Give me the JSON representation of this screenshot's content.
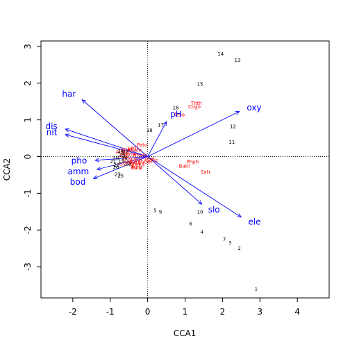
{
  "chart_data": {
    "type": "scatter",
    "title": "",
    "xlabel": "CCA1",
    "ylabel": "CCA2",
    "xlim": [
      -2.85,
      4.85
    ],
    "ylim": [
      -3.85,
      3.15
    ],
    "xticks": [
      -2,
      -1,
      0,
      1,
      2,
      3,
      4
    ],
    "yticks": [
      -3,
      -2,
      -1,
      0,
      1,
      2,
      3
    ],
    "xtick_labels": [
      "-2",
      "-1",
      "0",
      "1",
      "2",
      "3",
      "4"
    ],
    "ytick_labels": [
      "-3",
      "-2",
      "-1",
      "0",
      "1",
      "2",
      "3"
    ],
    "reference_lines": {
      "x": 0,
      "y": 0,
      "style": "dotted"
    },
    "colors": {
      "sites": "#000000",
      "species": "#ff0000",
      "biplot": "#0000ff"
    },
    "sites": [
      {
        "label": "1",
        "x": 2.9,
        "y": -3.6
      },
      {
        "label": "2",
        "x": 2.45,
        "y": -2.5
      },
      {
        "label": "3",
        "x": 2.2,
        "y": -2.35
      },
      {
        "label": "4",
        "x": 1.45,
        "y": -2.05
      },
      {
        "label": "5",
        "x": 0.2,
        "y": -1.47
      },
      {
        "label": "6",
        "x": 1.15,
        "y": -1.83
      },
      {
        "label": "7",
        "x": 2.05,
        "y": -2.25
      },
      {
        "label": "9",
        "x": 0.34,
        "y": -1.5
      },
      {
        "label": "10",
        "x": 1.4,
        "y": -1.5
      },
      {
        "label": "11",
        "x": 2.25,
        "y": 0.4
      },
      {
        "label": "12",
        "x": 2.28,
        "y": 0.82
      },
      {
        "label": "13",
        "x": 2.4,
        "y": 2.63
      },
      {
        "label": "14",
        "x": 1.95,
        "y": 2.8
      },
      {
        "label": "15",
        "x": 1.4,
        "y": 1.98
      },
      {
        "label": "16",
        "x": 0.75,
        "y": 1.33
      },
      {
        "label": "17",
        "x": 0.35,
        "y": 0.86
      },
      {
        "label": "18",
        "x": 0.05,
        "y": 0.72
      },
      {
        "label": "19",
        "x": -0.7,
        "y": -0.12
      },
      {
        "label": "20",
        "x": -0.85,
        "y": -0.05
      },
      {
        "label": "21",
        "x": -0.92,
        "y": -0.13
      },
      {
        "label": "22",
        "x": -0.83,
        "y": -0.23
      },
      {
        "label": "23",
        "x": -0.8,
        "y": -0.48
      },
      {
        "label": "24",
        "x": -0.72,
        "y": 0.15
      },
      {
        "label": "25",
        "x": -0.72,
        "y": -0.52
      },
      {
        "label": "26",
        "x": -0.68,
        "y": 0.05
      },
      {
        "label": "27",
        "x": -0.6,
        "y": 0.12
      },
      {
        "label": "28",
        "x": -0.52,
        "y": -0.2
      },
      {
        "label": "29",
        "x": -0.62,
        "y": -0.05
      },
      {
        "label": "30",
        "x": -0.85,
        "y": -0.28
      }
    ],
    "species": [
      {
        "label": "Cogo",
        "x": 1.25,
        "y": 1.36
      },
      {
        "label": "Thth",
        "x": 1.3,
        "y": 1.46
      },
      {
        "label": "Teso",
        "x": 0.85,
        "y": 1.14
      },
      {
        "label": "Phph",
        "x": 1.2,
        "y": -0.14
      },
      {
        "label": "Babl",
        "x": 0.98,
        "y": -0.26
      },
      {
        "label": "Satr",
        "x": 1.55,
        "y": -0.42
      },
      {
        "label": "Pato",
        "x": -0.15,
        "y": 0.32
      },
      {
        "label": "Rham",
        "x": -0.35,
        "y": 0.18
      },
      {
        "label": "Legi",
        "x": -0.4,
        "y": 0.25
      },
      {
        "label": "Anan",
        "x": -0.55,
        "y": 0.2
      },
      {
        "label": "Blbj",
        "x": -0.6,
        "y": 0.1
      },
      {
        "label": "Alal",
        "x": -0.65,
        "y": 0.02
      },
      {
        "label": "Gogo",
        "x": -0.5,
        "y": -0.05
      },
      {
        "label": "Icme",
        "x": -0.45,
        "y": 0.07
      },
      {
        "label": "Abbr",
        "x": -0.7,
        "y": 0.13
      },
      {
        "label": "Scer",
        "x": -0.5,
        "y": -0.13
      },
      {
        "label": "Cyca",
        "x": -0.35,
        "y": -0.19
      },
      {
        "label": "Chna",
        "x": -0.25,
        "y": -0.22
      },
      {
        "label": "Titi",
        "x": -0.25,
        "y": -0.09
      },
      {
        "label": "Baba",
        "x": -0.1,
        "y": -0.14
      },
      {
        "label": "Lele",
        "x": 0.05,
        "y": -0.06
      },
      {
        "label": "Sqce",
        "x": 0.12,
        "y": -0.09
      },
      {
        "label": "Ruru",
        "x": -0.3,
        "y": -0.28
      },
      {
        "label": "Eslu",
        "x": -0.3,
        "y": -0.3
      },
      {
        "label": "Pefl",
        "x": -0.4,
        "y": -0.16
      },
      {
        "label": "Gyce",
        "x": -0.6,
        "y": -0.2
      },
      {
        "label": "Rham2",
        "x": -0.2,
        "y": 0.05
      }
    ],
    "biplot_arrows": [
      {
        "label": "har",
        "x": -1.75,
        "y": 1.55
      },
      {
        "label": "dis",
        "x": -2.2,
        "y": 0.75
      },
      {
        "label": "nit",
        "x": -2.2,
        "y": 0.6
      },
      {
        "label": "pho",
        "x": -1.4,
        "y": -0.1
      },
      {
        "label": "amm",
        "x": -1.35,
        "y": -0.35
      },
      {
        "label": "bod",
        "x": -1.45,
        "y": -0.6
      },
      {
        "label": "pH",
        "x": 0.5,
        "y": 0.95
      },
      {
        "label": "oxy",
        "x": 2.45,
        "y": 1.23
      },
      {
        "label": "slo",
        "x": 1.45,
        "y": -1.3
      },
      {
        "label": "ele",
        "x": 2.5,
        "y": -1.65
      }
    ]
  }
}
